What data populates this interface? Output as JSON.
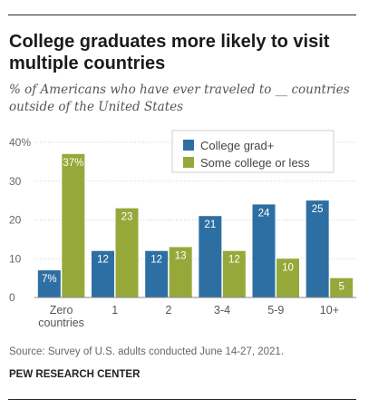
{
  "header": {
    "title": "College graduates more likely to visit multiple countries",
    "subtitle": "% of Americans who have ever traveled to __ countries outside of the United States"
  },
  "footer": {
    "source": "Source: Survey of U.S. adults conducted June 14-27, 2021.",
    "brand": "PEW RESEARCH CENTER"
  },
  "chart_data": {
    "type": "bar",
    "title": "College graduates more likely to visit multiple countries",
    "subtitle": "% of Americans who have ever traveled to __ countries outside of the United States",
    "xlabel": "",
    "ylabel": "",
    "categories": [
      "Zero\ncountries",
      "1",
      "2",
      "3-4",
      "5-9",
      "10+"
    ],
    "series": [
      {
        "name": "College grad+",
        "color": "#2d6fa3",
        "values": [
          7,
          12,
          12,
          21,
          24,
          25
        ],
        "labels": [
          "7%",
          "12",
          "12",
          "21",
          "24",
          "25"
        ]
      },
      {
        "name": "Some college or less",
        "color": "#97a83a",
        "values": [
          37,
          23,
          13,
          12,
          10,
          5
        ],
        "labels": [
          "37%",
          "23",
          "13",
          "12",
          "10",
          "5"
        ]
      }
    ],
    "ylim": [
      0,
      40
    ],
    "yticks": [
      0,
      10,
      20,
      30,
      40
    ],
    "ytick_labels": [
      "0",
      "10",
      "20",
      "30",
      "40%"
    ],
    "grid": true,
    "legend_position": "top-right"
  }
}
